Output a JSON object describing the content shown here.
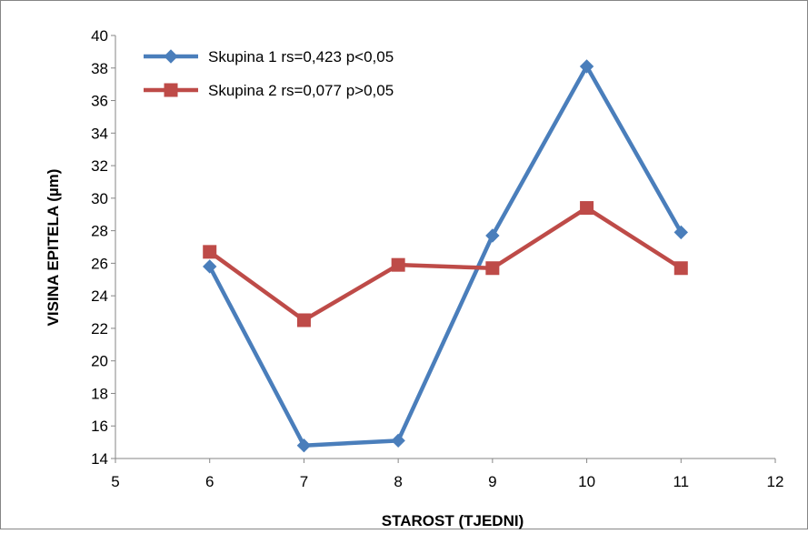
{
  "chart_data": {
    "type": "line",
    "title": "",
    "xlabel": "STAROST (TJEDNI)",
    "ylabel": "VISINA EPITELA (µm)",
    "xlim": [
      5,
      12
    ],
    "ylim": [
      14,
      40
    ],
    "xticks": [
      5,
      6,
      7,
      8,
      9,
      10,
      11,
      12
    ],
    "yticks": [
      14,
      16,
      18,
      20,
      22,
      24,
      26,
      28,
      30,
      32,
      34,
      36,
      38,
      40
    ],
    "grid": false,
    "legend_position": "top-left",
    "series": [
      {
        "name": "Skupina 1 rs=0,423 p<0,05",
        "color": "#4a7ebb",
        "marker": "diamond",
        "x": [
          6,
          7,
          8,
          9,
          10,
          11
        ],
        "y": [
          25.8,
          14.8,
          15.1,
          27.7,
          38.1,
          27.9
        ]
      },
      {
        "name": "Skupina 2 rs=0,077 p>0,05",
        "color": "#be4b48",
        "marker": "square",
        "x": [
          6,
          7,
          8,
          9,
          10,
          11
        ],
        "y": [
          26.7,
          22.5,
          25.9,
          25.7,
          29.4,
          25.7
        ]
      }
    ]
  }
}
